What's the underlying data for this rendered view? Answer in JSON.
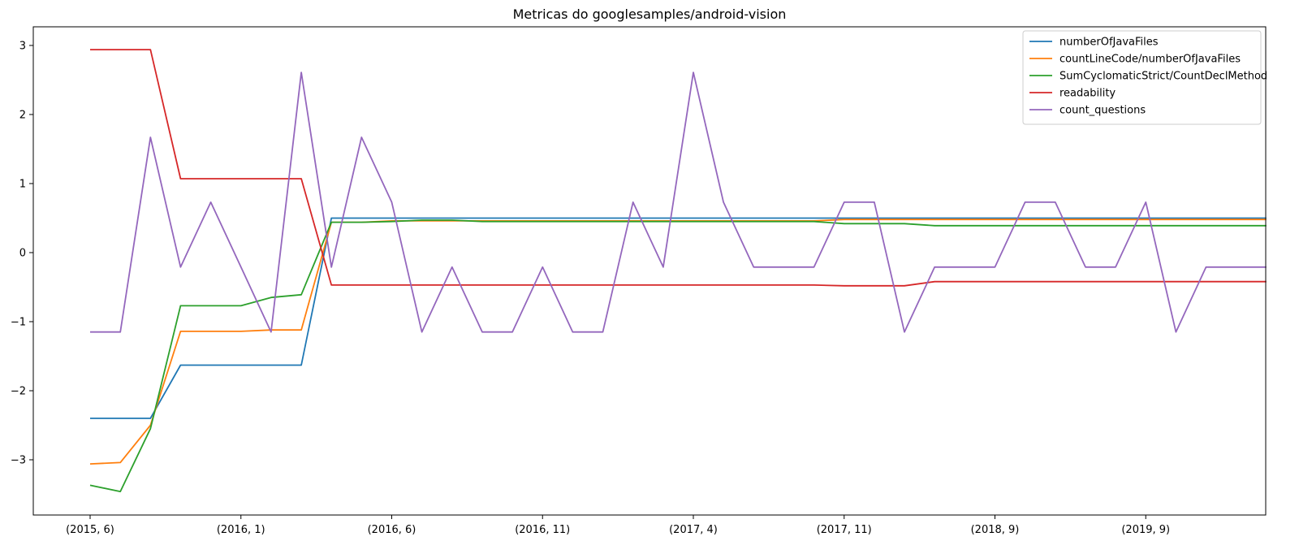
{
  "chart_data": {
    "type": "line",
    "title": "Metricas do googlesamples/android-vision",
    "xlabel": "",
    "ylabel": "",
    "ylim": [
      -3.8,
      3.27
    ],
    "x_tick_labels": [
      "(2015, 6)",
      "(2016, 1)",
      "(2016, 6)",
      "(2016, 11)",
      "(2017, 4)",
      "(2017, 11)",
      "(2018, 9)",
      "(2019, 9)"
    ],
    "x_tick_indices": [
      0,
      5,
      10,
      15,
      20,
      25,
      30,
      35
    ],
    "y_ticks": [
      -3,
      -2,
      -1,
      0,
      1,
      2,
      3
    ],
    "y_tick_labels": [
      "−3",
      "−2",
      "−1",
      "0",
      "1",
      "2",
      "3"
    ],
    "grid": false,
    "legend_position": "top-right",
    "series": [
      {
        "name": "numberOfJavaFiles",
        "color": "#1f77b4",
        "values": [
          -2.4,
          -2.4,
          -2.4,
          -1.63,
          -1.63,
          -1.63,
          -1.63,
          -1.63,
          0.5,
          0.5,
          0.5,
          0.5,
          0.5,
          0.5,
          0.5,
          0.5,
          0.5,
          0.5,
          0.5,
          0.5,
          0.5,
          0.5,
          0.5,
          0.5,
          0.5,
          0.5,
          0.5,
          0.5,
          0.5,
          0.5,
          0.5,
          0.5,
          0.5,
          0.5,
          0.5,
          0.5,
          0.5,
          0.5,
          0.5,
          0.5
        ]
      },
      {
        "name": "countLineCode/numberOfJavaFiles",
        "color": "#ff7f0e",
        "values": [
          -3.06,
          -3.04,
          -2.5,
          -1.14,
          -1.14,
          -1.14,
          -1.12,
          -1.12,
          0.44,
          0.44,
          0.46,
          0.46,
          0.46,
          0.46,
          0.46,
          0.46,
          0.46,
          0.46,
          0.46,
          0.46,
          0.46,
          0.46,
          0.46,
          0.46,
          0.46,
          0.48,
          0.48,
          0.48,
          0.48,
          0.48,
          0.48,
          0.48,
          0.48,
          0.48,
          0.48,
          0.48,
          0.48,
          0.48,
          0.48,
          0.48
        ]
      },
      {
        "name": "SumCyclomaticStrict/CountDeclMethod",
        "color": "#2ca02c",
        "values": [
          -3.37,
          -3.46,
          -2.55,
          -0.77,
          -0.77,
          -0.77,
          -0.65,
          -0.61,
          0.44,
          0.44,
          0.45,
          0.47,
          0.47,
          0.45,
          0.45,
          0.45,
          0.45,
          0.45,
          0.45,
          0.45,
          0.45,
          0.45,
          0.45,
          0.45,
          0.45,
          0.42,
          0.42,
          0.42,
          0.39,
          0.39,
          0.39,
          0.39,
          0.39,
          0.39,
          0.39,
          0.39,
          0.39,
          0.39,
          0.39,
          0.39
        ]
      },
      {
        "name": "readability",
        "color": "#d62728",
        "values": [
          2.94,
          2.94,
          2.94,
          1.07,
          1.07,
          1.07,
          1.07,
          1.07,
          -0.47,
          -0.47,
          -0.47,
          -0.47,
          -0.47,
          -0.47,
          -0.47,
          -0.47,
          -0.47,
          -0.47,
          -0.47,
          -0.47,
          -0.47,
          -0.47,
          -0.47,
          -0.47,
          -0.47,
          -0.48,
          -0.48,
          -0.48,
          -0.42,
          -0.42,
          -0.42,
          -0.42,
          -0.42,
          -0.42,
          -0.42,
          -0.42,
          -0.42,
          -0.42,
          -0.42,
          -0.42
        ]
      },
      {
        "name": "count_questions",
        "color": "#9467bd",
        "values": [
          -1.15,
          -1.15,
          1.67,
          -0.21,
          0.73,
          -0.21,
          -1.15,
          2.61,
          -0.21,
          1.67,
          0.73,
          -1.15,
          -0.21,
          -1.15,
          -1.15,
          -0.21,
          -1.15,
          -1.15,
          0.73,
          -0.21,
          2.61,
          0.73,
          -0.21,
          -0.21,
          -0.21,
          0.73,
          0.73,
          -1.15,
          -0.21,
          -0.21,
          -0.21,
          0.73,
          0.73,
          -0.21,
          -0.21,
          0.73,
          -1.15,
          -0.21,
          -0.21,
          -0.21
        ]
      }
    ]
  }
}
